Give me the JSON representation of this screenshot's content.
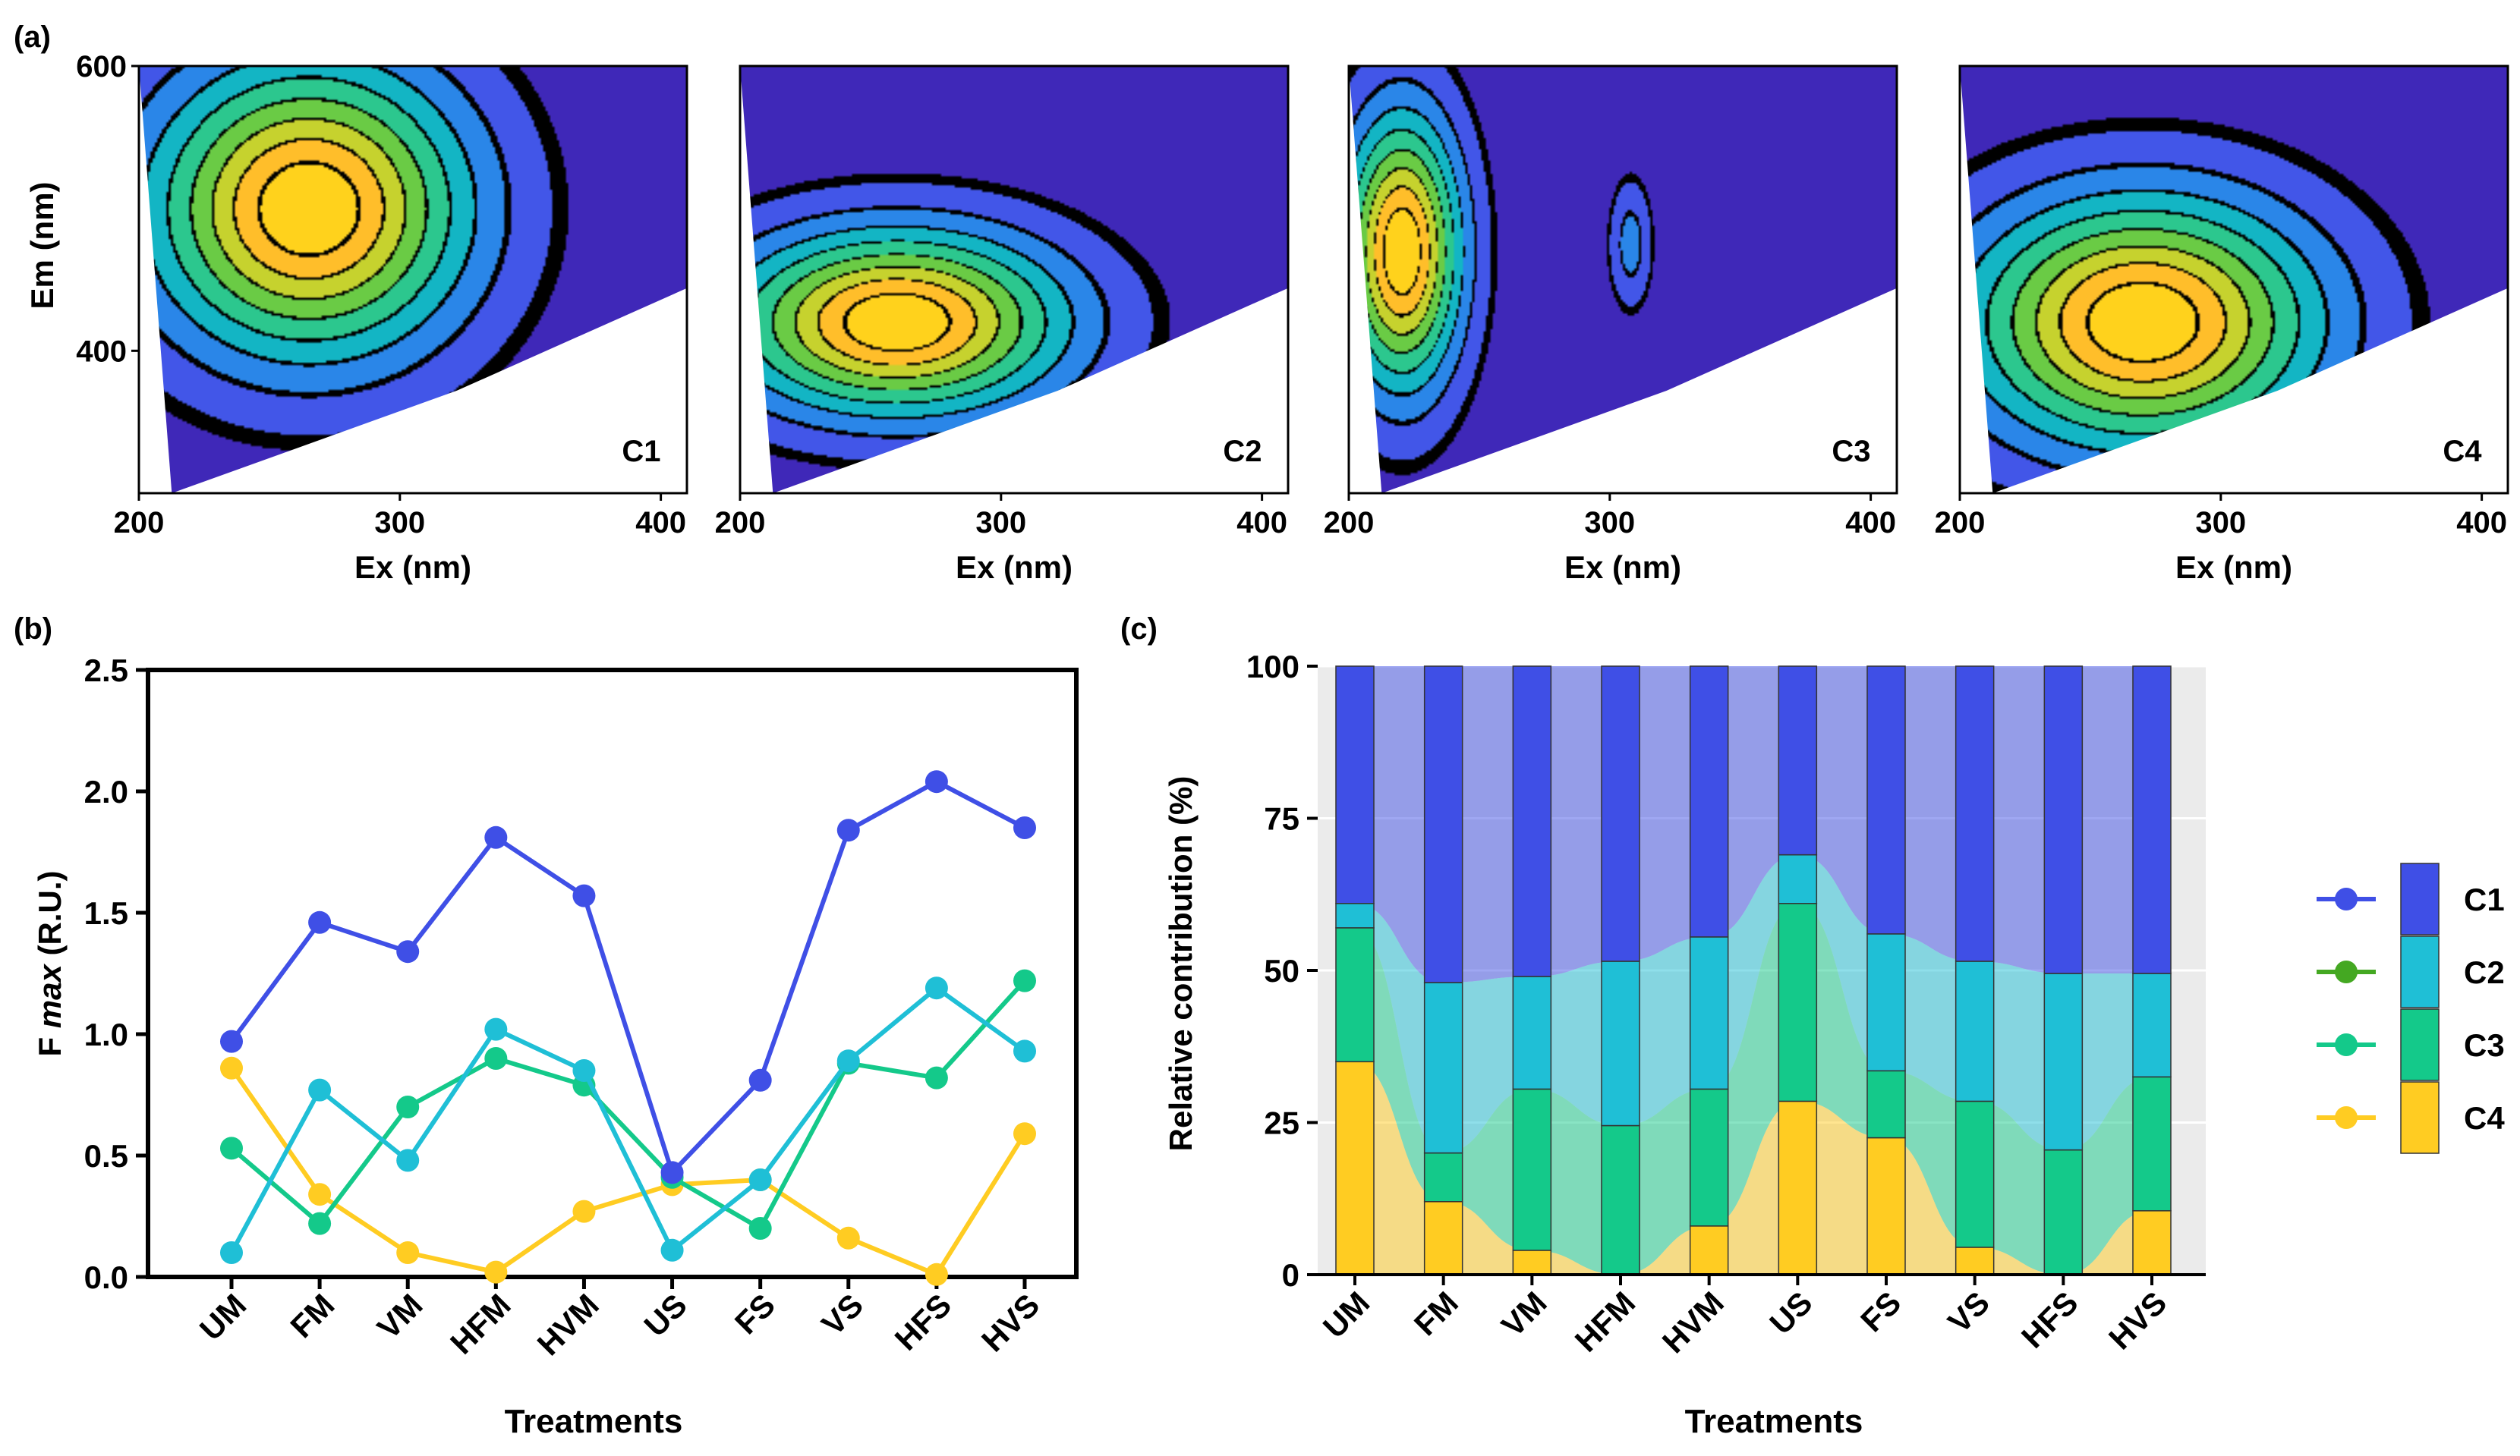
{
  "colors": {
    "c1": "#3F4FE6",
    "c2": "#1FBFD6",
    "c3": "#14C98A",
    "c4": "#FFCC22",
    "c2_legend": "#44A822",
    "eem_bg": "#3F28B8",
    "eem_levels": [
      "#3F28B8",
      "#4256E8",
      "#2A86E8",
      "#13B5C4",
      "#2CC78E",
      "#6ACB45",
      "#C6D22E",
      "#FFBE2A",
      "#FFD21C"
    ],
    "panel_c_bg": "#EBEBEB"
  },
  "chart_data": [
    {
      "type": "heatmap",
      "panel_label": "(a)",
      "subplots": [
        {
          "name": "C1",
          "peak_ex": 265,
          "peak_em": 500,
          "sigma_ex": 38,
          "sigma_em": 65,
          "secondary": []
        },
        {
          "name": "C2",
          "peak_ex": 260,
          "peak_em": 420,
          "sigma_ex": 40,
          "sigma_em": 40,
          "secondary": []
        },
        {
          "name": "C3",
          "peak_ex": 220,
          "peak_em": 470,
          "sigma_ex": 14,
          "sigma_em": 60,
          "secondary": [
            {
              "ex": 308,
              "em": 475,
              "amp": 0.18
            }
          ]
        },
        {
          "name": "C4",
          "peak_ex": 270,
          "peak_em": 420,
          "sigma_ex": 42,
          "sigma_em": 55,
          "secondary": [
            {
              "ex": 325,
              "em": 420,
              "amp": 0.35
            }
          ]
        }
      ],
      "xlabel": "Ex (nm)",
      "ylabel": "Em (nm)",
      "xticks": [
        "200",
        "300",
        "400"
      ],
      "yticks": [
        "600",
        "400"
      ],
      "xlim": [
        200,
        410
      ],
      "ylim": [
        300,
        600
      ]
    },
    {
      "type": "line",
      "panel_label": "(b)",
      "categories": [
        "UM",
        "FM",
        "VM",
        "HFM",
        "HVM",
        "US",
        "FS",
        "VS",
        "HFS",
        "HVS"
      ],
      "series": [
        {
          "name": "C1",
          "values": [
            0.97,
            1.46,
            1.34,
            1.81,
            1.57,
            0.43,
            0.81,
            1.84,
            2.04,
            1.85
          ]
        },
        {
          "name": "C2",
          "values": [
            0.1,
            0.77,
            0.48,
            1.02,
            0.85,
            0.11,
            0.4,
            0.89,
            1.19,
            0.93
          ]
        },
        {
          "name": "C3",
          "values": [
            0.53,
            0.22,
            0.7,
            0.9,
            0.79,
            0.41,
            0.2,
            0.88,
            0.82,
            1.22
          ]
        },
        {
          "name": "C4",
          "values": [
            0.86,
            0.34,
            0.1,
            0.02,
            0.27,
            0.38,
            0.4,
            0.16,
            0.01,
            0.59
          ]
        }
      ],
      "xlabel": "Treatments",
      "ylabel_prefix": "F ",
      "ylabel_italic": "max",
      "ylabel_suffix": " (R.U.)",
      "yticks": [
        "0.0",
        "0.5",
        "1.0",
        "1.5",
        "2.0",
        "2.5"
      ],
      "ylim": [
        0,
        2.5
      ]
    },
    {
      "type": "bar",
      "stacked": true,
      "panel_label": "(c)",
      "categories": [
        "UM",
        "FM",
        "VM",
        "HFM",
        "HVM",
        "US",
        "FS",
        "VS",
        "HFS",
        "HVS"
      ],
      "series": [
        {
          "name": "C4",
          "values": [
            35,
            12,
            4,
            0,
            8,
            28.5,
            22.5,
            4.5,
            0,
            10.5
          ]
        },
        {
          "name": "C3",
          "values": [
            22,
            8,
            26.5,
            24.5,
            22.5,
            32.5,
            11,
            24,
            20.5,
            22
          ]
        },
        {
          "name": "C2",
          "values": [
            4,
            28,
            18.5,
            27,
            25,
            8,
            22.5,
            23,
            29,
            17
          ]
        },
        {
          "name": "C1",
          "values": [
            39,
            52,
            51,
            48.5,
            44.5,
            31,
            44,
            48.5,
            50.5,
            50.5
          ]
        }
      ],
      "xlabel": "Treatments",
      "ylabel": "Relative contribution (%)",
      "yticks": [
        "0",
        "25",
        "50",
        "75",
        "100"
      ],
      "ylim": [
        0,
        100
      ]
    }
  ],
  "legend": {
    "items": [
      {
        "name": "C1",
        "label": "C1"
      },
      {
        "name": "C2",
        "label": "C2"
      },
      {
        "name": "C3",
        "label": "C3"
      },
      {
        "name": "C4",
        "label": "C4"
      }
    ]
  }
}
